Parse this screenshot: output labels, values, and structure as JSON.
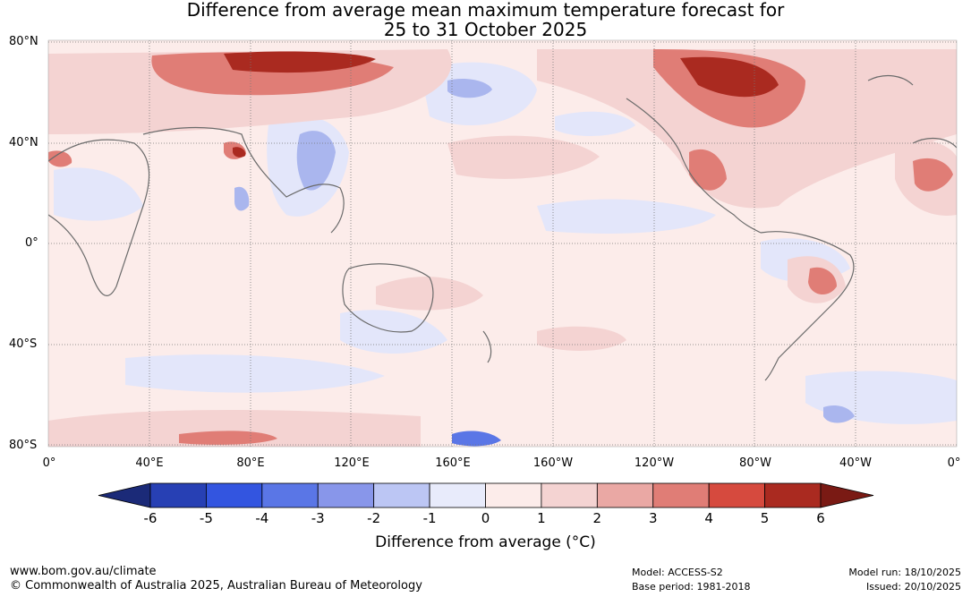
{
  "title": {
    "line1": "Difference from average mean maximum temperature forecast for",
    "line2": "25 to 31 October 2025"
  },
  "map": {
    "lat_labels": [
      "80°N",
      "40°N",
      "0°",
      "40°S",
      "80°S"
    ],
    "lon_labels": [
      "0°",
      "40°E",
      "80°E",
      "120°E",
      "160°E",
      "160°W",
      "120°W",
      "80°W",
      "40°W",
      "0°"
    ]
  },
  "colorbar": {
    "ticks": [
      "-6",
      "-5",
      "-4",
      "-3",
      "-2",
      "-1",
      "0",
      "1",
      "2",
      "3",
      "4",
      "5",
      "6"
    ],
    "colors": [
      "#1b2a78",
      "#2740b4",
      "#3355e0",
      "#5a76e6",
      "#8896ea",
      "#bcc6f4",
      "#e8ebfb",
      "#fcecea",
      "#f4d3d2",
      "#eaa8a4",
      "#e07d76",
      "#d64a3e",
      "#aa2a20",
      "#7a1a14"
    ],
    "label": "Difference from average (°C)"
  },
  "footer": {
    "url": "www.bom.gov.au/climate",
    "copyright": "© Commonwealth of Australia 2025, Australian Bureau of Meteorology",
    "model": "Model: ACCESS-S2",
    "base_period": "Base period: 1981-2018",
    "model_run": "Model run: 18/10/2025",
    "issued": "Issued: 20/10/2025"
  }
}
